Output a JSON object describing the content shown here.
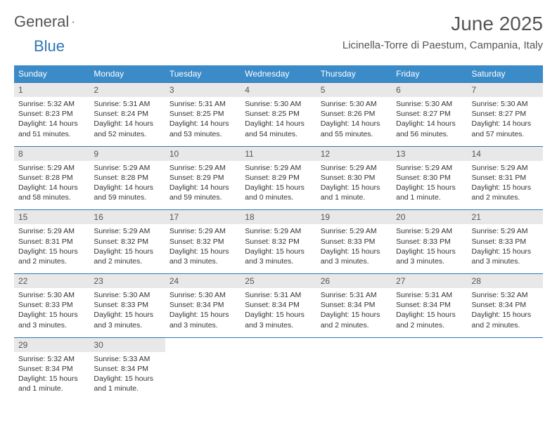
{
  "brand": {
    "part1": "General",
    "part2": "Blue"
  },
  "title": "June 2025",
  "location": "Licinella-Torre di Paestum, Campania, Italy",
  "colors": {
    "header_bg": "#3b8bc9",
    "header_text": "#ffffff",
    "date_bg": "#e8e8e8",
    "border": "#2f75b5",
    "text": "#333333",
    "title_text": "#555555"
  },
  "day_names": [
    "Sunday",
    "Monday",
    "Tuesday",
    "Wednesday",
    "Thursday",
    "Friday",
    "Saturday"
  ],
  "weeks": [
    {
      "dates": [
        "1",
        "2",
        "3",
        "4",
        "5",
        "6",
        "7"
      ],
      "cells": [
        {
          "sunrise": "Sunrise: 5:32 AM",
          "sunset": "Sunset: 8:23 PM",
          "day1": "Daylight: 14 hours",
          "day2": "and 51 minutes."
        },
        {
          "sunrise": "Sunrise: 5:31 AM",
          "sunset": "Sunset: 8:24 PM",
          "day1": "Daylight: 14 hours",
          "day2": "and 52 minutes."
        },
        {
          "sunrise": "Sunrise: 5:31 AM",
          "sunset": "Sunset: 8:25 PM",
          "day1": "Daylight: 14 hours",
          "day2": "and 53 minutes."
        },
        {
          "sunrise": "Sunrise: 5:30 AM",
          "sunset": "Sunset: 8:25 PM",
          "day1": "Daylight: 14 hours",
          "day2": "and 54 minutes."
        },
        {
          "sunrise": "Sunrise: 5:30 AM",
          "sunset": "Sunset: 8:26 PM",
          "day1": "Daylight: 14 hours",
          "day2": "and 55 minutes."
        },
        {
          "sunrise": "Sunrise: 5:30 AM",
          "sunset": "Sunset: 8:27 PM",
          "day1": "Daylight: 14 hours",
          "day2": "and 56 minutes."
        },
        {
          "sunrise": "Sunrise: 5:30 AM",
          "sunset": "Sunset: 8:27 PM",
          "day1": "Daylight: 14 hours",
          "day2": "and 57 minutes."
        }
      ]
    },
    {
      "dates": [
        "8",
        "9",
        "10",
        "11",
        "12",
        "13",
        "14"
      ],
      "cells": [
        {
          "sunrise": "Sunrise: 5:29 AM",
          "sunset": "Sunset: 8:28 PM",
          "day1": "Daylight: 14 hours",
          "day2": "and 58 minutes."
        },
        {
          "sunrise": "Sunrise: 5:29 AM",
          "sunset": "Sunset: 8:28 PM",
          "day1": "Daylight: 14 hours",
          "day2": "and 59 minutes."
        },
        {
          "sunrise": "Sunrise: 5:29 AM",
          "sunset": "Sunset: 8:29 PM",
          "day1": "Daylight: 14 hours",
          "day2": "and 59 minutes."
        },
        {
          "sunrise": "Sunrise: 5:29 AM",
          "sunset": "Sunset: 8:29 PM",
          "day1": "Daylight: 15 hours",
          "day2": "and 0 minutes."
        },
        {
          "sunrise": "Sunrise: 5:29 AM",
          "sunset": "Sunset: 8:30 PM",
          "day1": "Daylight: 15 hours",
          "day2": "and 1 minute."
        },
        {
          "sunrise": "Sunrise: 5:29 AM",
          "sunset": "Sunset: 8:30 PM",
          "day1": "Daylight: 15 hours",
          "day2": "and 1 minute."
        },
        {
          "sunrise": "Sunrise: 5:29 AM",
          "sunset": "Sunset: 8:31 PM",
          "day1": "Daylight: 15 hours",
          "day2": "and 2 minutes."
        }
      ]
    },
    {
      "dates": [
        "15",
        "16",
        "17",
        "18",
        "19",
        "20",
        "21"
      ],
      "cells": [
        {
          "sunrise": "Sunrise: 5:29 AM",
          "sunset": "Sunset: 8:31 PM",
          "day1": "Daylight: 15 hours",
          "day2": "and 2 minutes."
        },
        {
          "sunrise": "Sunrise: 5:29 AM",
          "sunset": "Sunset: 8:32 PM",
          "day1": "Daylight: 15 hours",
          "day2": "and 2 minutes."
        },
        {
          "sunrise": "Sunrise: 5:29 AM",
          "sunset": "Sunset: 8:32 PM",
          "day1": "Daylight: 15 hours",
          "day2": "and 3 minutes."
        },
        {
          "sunrise": "Sunrise: 5:29 AM",
          "sunset": "Sunset: 8:32 PM",
          "day1": "Daylight: 15 hours",
          "day2": "and 3 minutes."
        },
        {
          "sunrise": "Sunrise: 5:29 AM",
          "sunset": "Sunset: 8:33 PM",
          "day1": "Daylight: 15 hours",
          "day2": "and 3 minutes."
        },
        {
          "sunrise": "Sunrise: 5:29 AM",
          "sunset": "Sunset: 8:33 PM",
          "day1": "Daylight: 15 hours",
          "day2": "and 3 minutes."
        },
        {
          "sunrise": "Sunrise: 5:29 AM",
          "sunset": "Sunset: 8:33 PM",
          "day1": "Daylight: 15 hours",
          "day2": "and 3 minutes."
        }
      ]
    },
    {
      "dates": [
        "22",
        "23",
        "24",
        "25",
        "26",
        "27",
        "28"
      ],
      "cells": [
        {
          "sunrise": "Sunrise: 5:30 AM",
          "sunset": "Sunset: 8:33 PM",
          "day1": "Daylight: 15 hours",
          "day2": "and 3 minutes."
        },
        {
          "sunrise": "Sunrise: 5:30 AM",
          "sunset": "Sunset: 8:33 PM",
          "day1": "Daylight: 15 hours",
          "day2": "and 3 minutes."
        },
        {
          "sunrise": "Sunrise: 5:30 AM",
          "sunset": "Sunset: 8:34 PM",
          "day1": "Daylight: 15 hours",
          "day2": "and 3 minutes."
        },
        {
          "sunrise": "Sunrise: 5:31 AM",
          "sunset": "Sunset: 8:34 PM",
          "day1": "Daylight: 15 hours",
          "day2": "and 3 minutes."
        },
        {
          "sunrise": "Sunrise: 5:31 AM",
          "sunset": "Sunset: 8:34 PM",
          "day1": "Daylight: 15 hours",
          "day2": "and 2 minutes."
        },
        {
          "sunrise": "Sunrise: 5:31 AM",
          "sunset": "Sunset: 8:34 PM",
          "day1": "Daylight: 15 hours",
          "day2": "and 2 minutes."
        },
        {
          "sunrise": "Sunrise: 5:32 AM",
          "sunset": "Sunset: 8:34 PM",
          "day1": "Daylight: 15 hours",
          "day2": "and 2 minutes."
        }
      ]
    },
    {
      "dates": [
        "29",
        "30",
        "",
        "",
        "",
        "",
        ""
      ],
      "cells": [
        {
          "sunrise": "Sunrise: 5:32 AM",
          "sunset": "Sunset: 8:34 PM",
          "day1": "Daylight: 15 hours",
          "day2": "and 1 minute."
        },
        {
          "sunrise": "Sunrise: 5:33 AM",
          "sunset": "Sunset: 8:34 PM",
          "day1": "Daylight: 15 hours",
          "day2": "and 1 minute."
        },
        null,
        null,
        null,
        null,
        null
      ]
    }
  ]
}
